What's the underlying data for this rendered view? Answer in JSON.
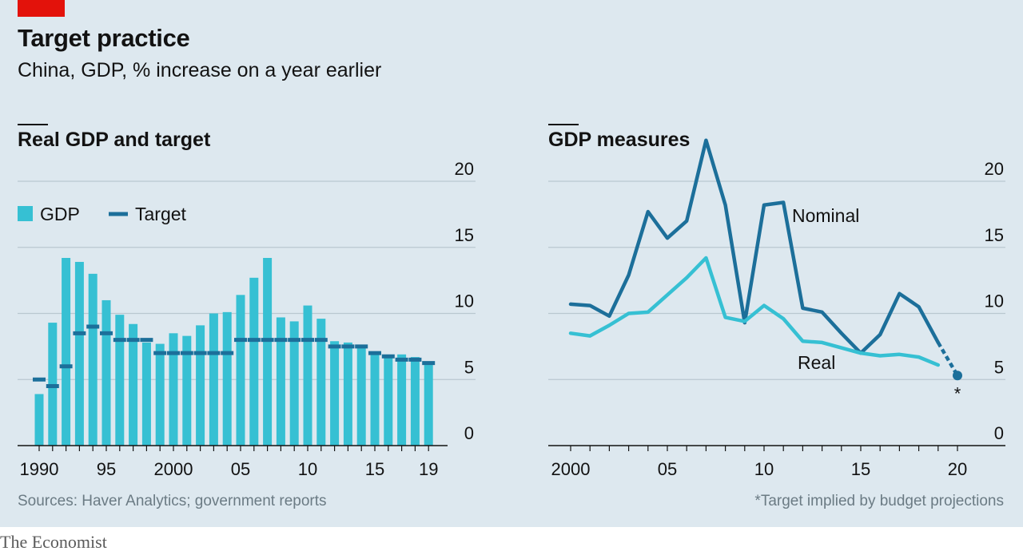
{
  "header": {
    "title": "Target practice",
    "subtitle": "China, GDP, % increase on a year earlier"
  },
  "panels": {
    "left_title": "Real GDP and target",
    "right_title": "GDP measures"
  },
  "footer": {
    "sources": "Sources: Haver Analytics; government reports",
    "note": "*Target implied by budget projections",
    "brand": "The Economist"
  },
  "colors": {
    "bar": "#36c0d3",
    "target": "#1c6f9a",
    "nominal": "#1c6f9a",
    "real": "#36c0d3",
    "grid": "#b9c7d0",
    "axis": "#121212",
    "text": "#121212"
  },
  "chart_data": [
    {
      "type": "bar",
      "title": "Real GDP and target",
      "x": [
        1990,
        1991,
        1992,
        1993,
        1994,
        1995,
        1996,
        1997,
        1998,
        1999,
        2000,
        2001,
        2002,
        2003,
        2004,
        2005,
        2006,
        2007,
        2008,
        2009,
        2010,
        2011,
        2012,
        2013,
        2014,
        2015,
        2016,
        2017,
        2018,
        2019
      ],
      "series": [
        {
          "name": "GDP",
          "values": [
            3.9,
            9.3,
            14.2,
            13.9,
            13.0,
            11.0,
            9.9,
            9.2,
            7.8,
            7.7,
            8.5,
            8.3,
            9.1,
            10.0,
            10.1,
            11.4,
            12.7,
            14.2,
            9.7,
            9.4,
            10.6,
            9.6,
            7.9,
            7.8,
            7.4,
            7.0,
            6.8,
            6.9,
            6.7,
            6.1
          ]
        },
        {
          "name": "Target",
          "values": [
            5,
            4.5,
            6,
            8.5,
            9,
            8.5,
            8,
            8,
            8,
            7,
            7,
            7,
            7,
            7,
            7,
            8,
            8,
            8,
            8,
            8,
            8,
            8,
            7.5,
            7.5,
            7.5,
            7,
            6.75,
            6.5,
            6.5,
            6.25
          ]
        }
      ],
      "x_tick_labels": [
        "1990",
        "95",
        "2000",
        "05",
        "10",
        "15",
        "19"
      ],
      "y_tick_labels": [
        "0",
        "5",
        "10",
        "15",
        "20"
      ],
      "ylim": [
        0,
        20
      ],
      "legend": [
        "GDP",
        "Target"
      ],
      "legend_position": "top-left"
    },
    {
      "type": "line",
      "title": "GDP measures",
      "x": [
        2000,
        2001,
        2002,
        2003,
        2004,
        2005,
        2006,
        2007,
        2008,
        2009,
        2010,
        2011,
        2012,
        2013,
        2014,
        2015,
        2016,
        2017,
        2018,
        2019
      ],
      "series": [
        {
          "name": "Nominal",
          "values": [
            10.7,
            10.6,
            9.8,
            12.9,
            17.7,
            15.7,
            17.0,
            23.1,
            18.2,
            9.3,
            18.2,
            18.4,
            10.4,
            10.1,
            8.5,
            7.0,
            8.4,
            11.5,
            10.5,
            7.8
          ]
        },
        {
          "name": "Real",
          "values": [
            8.5,
            8.3,
            9.1,
            10.0,
            10.1,
            11.4,
            12.7,
            14.2,
            9.7,
            9.4,
            10.6,
            9.6,
            7.9,
            7.8,
            7.4,
            7.0,
            6.8,
            6.9,
            6.7,
            6.1
          ]
        }
      ],
      "projection": {
        "x": [
          2019,
          2020
        ],
        "values": [
          7.8,
          5.3
        ],
        "marker_label": "*"
      },
      "x_tick_labels": [
        "2000",
        "05",
        "10",
        "15",
        "20"
      ],
      "y_tick_labels": [
        "0",
        "5",
        "10",
        "15",
        "20"
      ],
      "ylim": [
        0,
        20
      ]
    }
  ]
}
